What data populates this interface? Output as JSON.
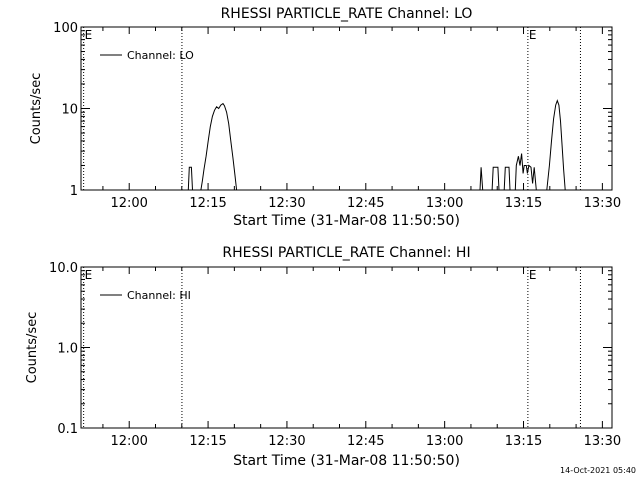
{
  "footer": {
    "timestamp": "14-Oct-2021 05:40"
  },
  "chart_data": [
    {
      "type": "line",
      "title": "RHESSI PARTICLE_RATE Channel: LO",
      "xlabel": "Start Time (31-Mar-08 11:50:50)",
      "ylabel": "Counts/sec",
      "x_unit": "minutes after 11:50:50",
      "xlim": [
        0,
        101
      ],
      "ylim": [
        1,
        100
      ],
      "yscale": "log",
      "x_ticks": [
        {
          "label": "12:00",
          "value": 9.17
        },
        {
          "label": "12:15",
          "value": 24.17
        },
        {
          "label": "12:30",
          "value": 39.17
        },
        {
          "label": "12:45",
          "value": 54.17
        },
        {
          "label": "13:00",
          "value": 69.17
        },
        {
          "label": "13:15",
          "value": 84.17
        },
        {
          "label": "13:30",
          "value": 99.17
        }
      ],
      "y_ticks": [
        {
          "label": "1",
          "value": 1
        },
        {
          "label": "10",
          "value": 10
        },
        {
          "label": "100",
          "value": 100
        }
      ],
      "markers": [
        {
          "label": "E",
          "x": 0.5
        },
        {
          "label": "",
          "x": 19.2
        },
        {
          "label": "E",
          "x": 85.0
        },
        {
          "label": "",
          "x": 95.0
        }
      ],
      "legend": {
        "placement": "top-left",
        "entries": [
          "Channel: LO"
        ]
      },
      "grid": false,
      "series": [
        {
          "name": "Channel: LO",
          "points": [
            [
              20.4,
              1
            ],
            [
              20.6,
              1.9
            ],
            [
              21.0,
              1.9
            ],
            [
              21.2,
              1
            ],
            [
              22.8,
              1
            ],
            [
              23.1,
              1.3
            ],
            [
              23.4,
              1.8
            ],
            [
              23.8,
              2.6
            ],
            [
              24.2,
              4.0
            ],
            [
              24.6,
              6.0
            ],
            [
              25.0,
              8.0
            ],
            [
              25.4,
              9.5
            ],
            [
              25.8,
              10.5
            ],
            [
              26.2,
              10.0
            ],
            [
              26.6,
              11.0
            ],
            [
              27.0,
              11.5
            ],
            [
              27.3,
              10.8
            ],
            [
              27.7,
              9.0
            ],
            [
              28.1,
              6.5
            ],
            [
              28.5,
              4.0
            ],
            [
              28.9,
              2.5
            ],
            [
              29.3,
              1.5
            ],
            [
              29.6,
              1
            ],
            [
              75.9,
              1
            ],
            [
              76.1,
              1.9
            ],
            [
              76.4,
              1
            ],
            [
              78.2,
              1
            ],
            [
              78.4,
              1.9
            ],
            [
              79.3,
              1.9
            ],
            [
              79.5,
              1
            ],
            [
              80.5,
              1
            ],
            [
              80.7,
              1.9
            ],
            [
              81.4,
              1.9
            ],
            [
              81.6,
              1
            ],
            [
              82.6,
              1
            ],
            [
              82.8,
              2.0
            ],
            [
              83.2,
              2.6
            ],
            [
              83.5,
              2.0
            ],
            [
              83.8,
              2.8
            ],
            [
              84.1,
              1.6
            ],
            [
              84.3,
              2.0
            ],
            [
              84.7,
              2.0
            ],
            [
              84.9,
              1.6
            ],
            [
              85.2,
              2.0
            ],
            [
              85.6,
              1.9
            ],
            [
              85.9,
              1.2
            ],
            [
              86.2,
              1.9
            ],
            [
              86.6,
              1
            ],
            [
              88.6,
              1
            ],
            [
              89.1,
              2.0
            ],
            [
              89.5,
              4.0
            ],
            [
              89.9,
              7.5
            ],
            [
              90.3,
              11.0
            ],
            [
              90.6,
              12.5
            ],
            [
              90.9,
              11.0
            ],
            [
              91.2,
              7.0
            ],
            [
              91.5,
              3.5
            ],
            [
              91.8,
              1.8
            ],
            [
              92.1,
              1
            ]
          ]
        }
      ]
    },
    {
      "type": "line",
      "title": "RHESSI PARTICLE_RATE Channel: HI",
      "xlabel": "Start Time (31-Mar-08 11:50:50)",
      "ylabel": "Counts/sec",
      "x_unit": "minutes after 11:50:50",
      "xlim": [
        0,
        101
      ],
      "ylim": [
        0.1,
        10.0
      ],
      "yscale": "log",
      "x_ticks": [
        {
          "label": "12:00",
          "value": 9.17
        },
        {
          "label": "12:15",
          "value": 24.17
        },
        {
          "label": "12:30",
          "value": 39.17
        },
        {
          "label": "12:45",
          "value": 54.17
        },
        {
          "label": "13:00",
          "value": 69.17
        },
        {
          "label": "13:15",
          "value": 84.17
        },
        {
          "label": "13:30",
          "value": 99.17
        }
      ],
      "y_ticks": [
        {
          "label": "0.1",
          "value": 0.1
        },
        {
          "label": "1.0",
          "value": 1.0
        },
        {
          "label": "10.0",
          "value": 10.0
        }
      ],
      "markers": [
        {
          "label": "E",
          "x": 0.5
        },
        {
          "label": "",
          "x": 19.2
        },
        {
          "label": "E",
          "x": 85.0
        },
        {
          "label": "",
          "x": 95.0
        }
      ],
      "legend": {
        "placement": "top-left",
        "entries": [
          "Channel: HI"
        ]
      },
      "grid": false,
      "series": [
        {
          "name": "Channel: HI",
          "points": []
        }
      ]
    }
  ]
}
